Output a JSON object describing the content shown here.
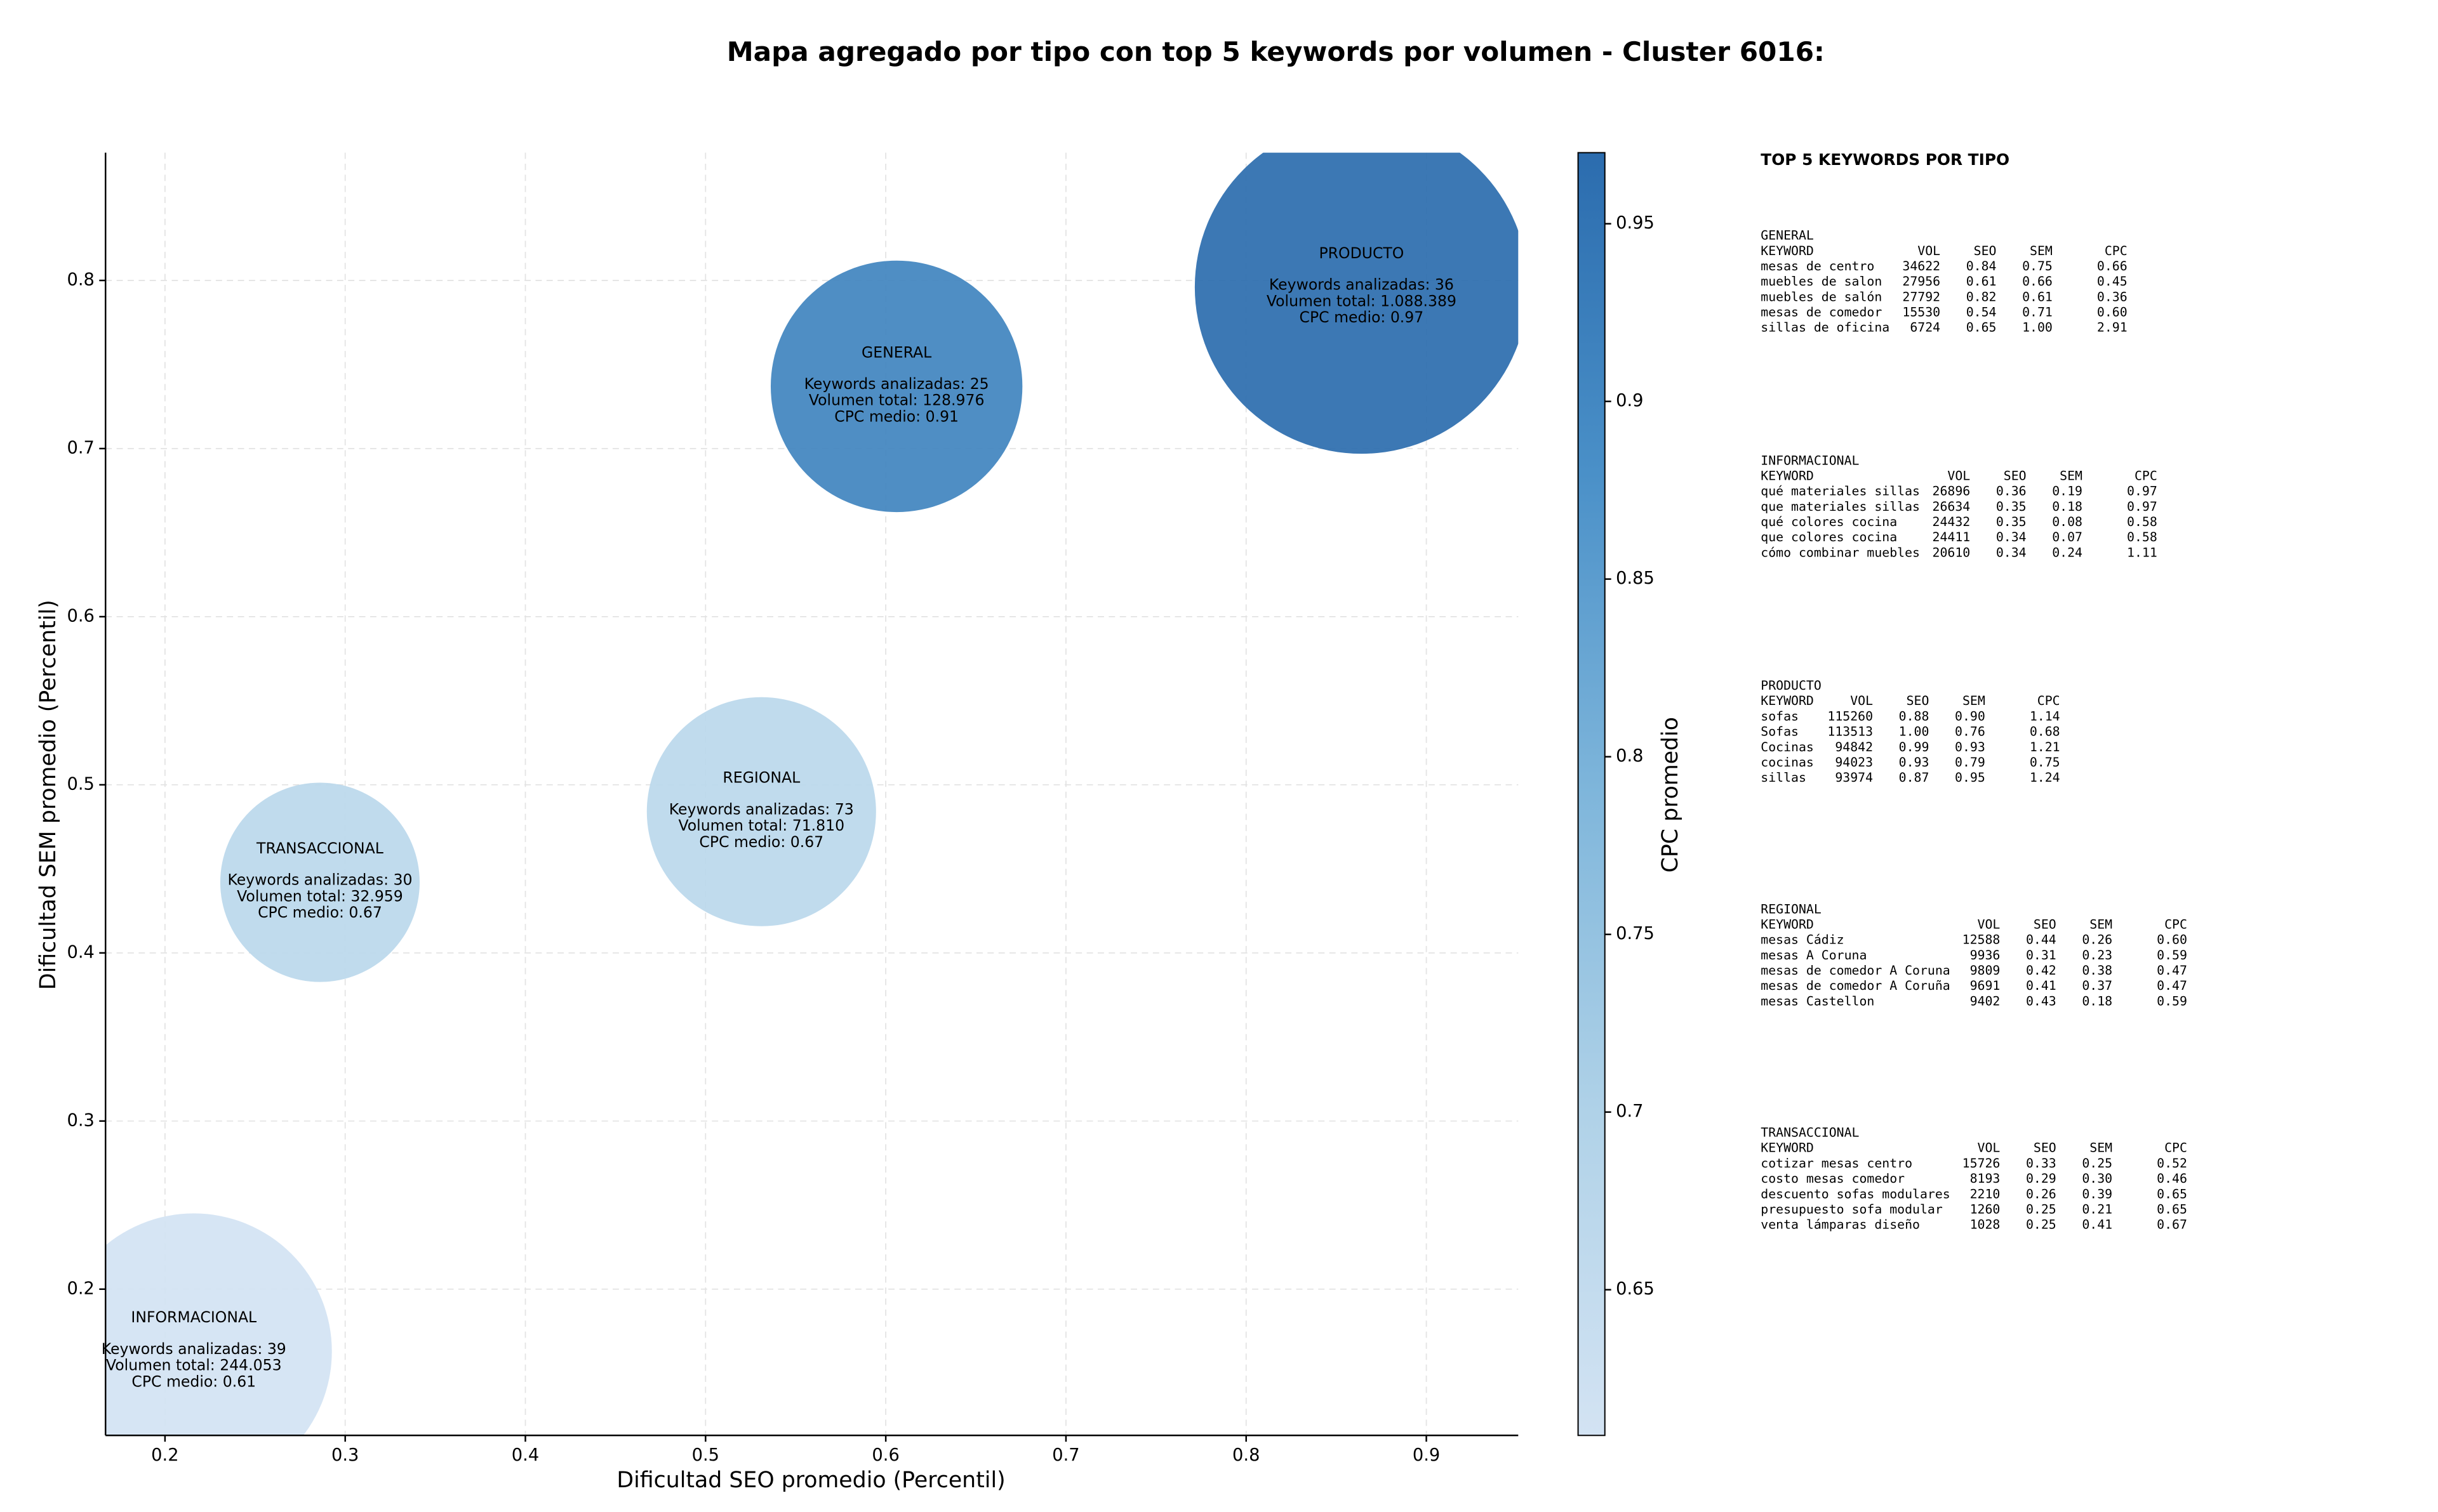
{
  "chart_data": {
    "type": "bubble",
    "title": "Mapa agregado por tipo con top 5 keywords por volumen - Cluster 6016:",
    "x_label": "Dificultad SEO promedio (Percentil)",
    "y_label": "Dificultad SEM promedio (Percentil)",
    "colorbar_label": "CPC promedio",
    "names": [
      "GENERAL",
      "PRODUCTO",
      "REGIONAL",
      "TRANSACCIONAL",
      "INFORMACIONAL"
    ],
    "x": [
      0.606,
      0.864,
      0.531,
      0.286,
      0.216
    ],
    "y": [
      0.737,
      0.796,
      0.484,
      0.442,
      0.163
    ],
    "size": [
      128976,
      1088389,
      71810,
      32959,
      244053
    ],
    "cpc": [
      0.91,
      0.97,
      0.67,
      0.67,
      0.61
    ],
    "annotations": [
      [
        "Keywords analizadas: 25",
        "Volumen total: 128.976",
        "CPC medio: 0.91"
      ],
      [
        "Keywords analizadas: 36",
        "Volumen total: 1.088.389",
        "CPC medio: 0.97"
      ],
      [
        "Keywords analizadas: 73",
        "Volumen total: 71.810",
        "CPC medio: 0.67"
      ],
      [
        "Keywords analizadas: 30",
        "Volumen total: 32.959",
        "CPC medio: 0.67"
      ],
      [
        "Keywords analizadas: 39",
        "Volumen total: 244.053",
        "CPC medio: 0.61"
      ]
    ],
    "xlim": [
      0.167,
      0.951
    ],
    "ylim": [
      0.113,
      0.876
    ],
    "clim": [
      0.609,
      0.97
    ],
    "xticks": [
      0.2,
      0.3,
      0.4,
      0.5,
      0.6,
      0.7,
      0.8,
      0.9
    ],
    "yticks": [
      0.2,
      0.3,
      0.4,
      0.5,
      0.6,
      0.7,
      0.8
    ],
    "cticks": [
      0.65,
      0.7,
      0.75,
      0.8,
      0.85,
      0.9,
      0.95
    ],
    "grid": true,
    "colormap": [
      "#d3e3f3",
      "#b0d2e8",
      "#7fb6db",
      "#4a90c8",
      "#2b6cae"
    ]
  },
  "keyword_tables": {
    "title": "TOP 5 KEYWORDS POR TIPO",
    "columns": [
      "KEYWORD",
      "VOL",
      "SEO",
      "SEM",
      "CPC"
    ],
    "sections": [
      {
        "name": "GENERAL",
        "rows": [
          [
            "mesas de centro",
            "34622",
            "0.84",
            "0.75",
            "0.66"
          ],
          [
            "muebles de salon",
            "27956",
            "0.61",
            "0.66",
            "0.45"
          ],
          [
            "muebles de salón",
            "27792",
            "0.82",
            "0.61",
            "0.36"
          ],
          [
            "mesas de comedor",
            "15530",
            "0.54",
            "0.71",
            "0.60"
          ],
          [
            "sillas de oficina",
            "6724",
            "0.65",
            "1.00",
            "2.91"
          ]
        ]
      },
      {
        "name": "INFORMACIONAL",
        "rows": [
          [
            "qué materiales sillas",
            "26896",
            "0.36",
            "0.19",
            "0.97"
          ],
          [
            "que materiales sillas",
            "26634",
            "0.35",
            "0.18",
            "0.97"
          ],
          [
            "qué colores cocina",
            "24432",
            "0.35",
            "0.08",
            "0.58"
          ],
          [
            "que colores cocina",
            "24411",
            "0.34",
            "0.07",
            "0.58"
          ],
          [
            "cómo combinar muebles",
            "20610",
            "0.34",
            "0.24",
            "1.11"
          ]
        ]
      },
      {
        "name": "PRODUCTO",
        "rows": [
          [
            "sofas",
            "115260",
            "0.88",
            "0.90",
            "1.14"
          ],
          [
            "Sofas",
            "113513",
            "1.00",
            "0.76",
            "0.68"
          ],
          [
            "Cocinas",
            "94842",
            "0.99",
            "0.93",
            "1.21"
          ],
          [
            "cocinas",
            "94023",
            "0.93",
            "0.79",
            "0.75"
          ],
          [
            "sillas",
            "93974",
            "0.87",
            "0.95",
            "1.24"
          ]
        ]
      },
      {
        "name": "REGIONAL",
        "rows": [
          [
            "mesas Cádiz",
            "12588",
            "0.44",
            "0.26",
            "0.60"
          ],
          [
            "mesas A Coruna",
            "9936",
            "0.31",
            "0.23",
            "0.59"
          ],
          [
            "mesas de comedor A Coruna",
            "9809",
            "0.42",
            "0.38",
            "0.47"
          ],
          [
            "mesas de comedor A Coruña",
            "9691",
            "0.41",
            "0.37",
            "0.47"
          ],
          [
            "mesas Castellon",
            "9402",
            "0.43",
            "0.18",
            "0.59"
          ]
        ]
      },
      {
        "name": "TRANSACCIONAL",
        "rows": [
          [
            "cotizar mesas centro",
            "15726",
            "0.33",
            "0.25",
            "0.52"
          ],
          [
            "costo mesas comedor",
            "8193",
            "0.29",
            "0.30",
            "0.46"
          ],
          [
            "descuento sofas modulares",
            "2210",
            "0.26",
            "0.39",
            "0.65"
          ],
          [
            "presupuesto sofa modular",
            "1260",
            "0.25",
            "0.21",
            "0.65"
          ],
          [
            "venta lámparas diseño",
            "1028",
            "0.25",
            "0.41",
            "0.67"
          ]
        ]
      }
    ]
  }
}
